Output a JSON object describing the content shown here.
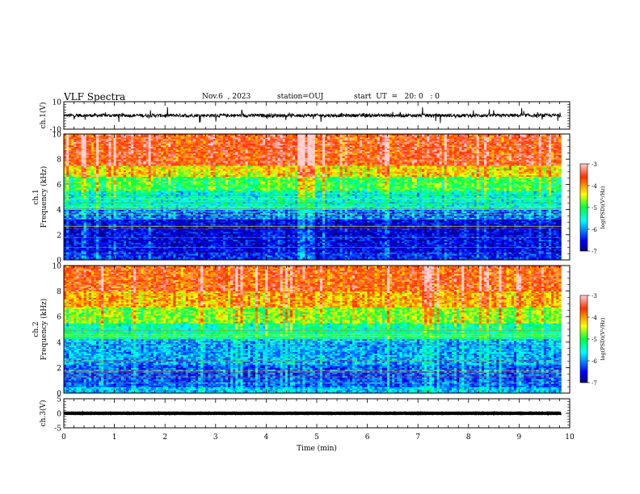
{
  "header": {
    "title": "VLF Spectra",
    "date": "Nov.6  , 2023",
    "station": "station=OUJ",
    "start_ut": "start  UT  =   20: 0   : 0"
  },
  "chart_data": [
    {
      "type": "line",
      "panel": "ch1-waveform",
      "ylabel": "ch.1(V)",
      "yticks": [
        "10",
        "-10"
      ],
      "ylim": [
        -10,
        10
      ],
      "xlim": [
        0,
        10
      ],
      "series": [
        {
          "color": "#000000",
          "baseline": 0,
          "noise_amplitude": 1.2,
          "spikes": true
        }
      ]
    },
    {
      "type": "heatmap",
      "panel": "ch1-spectrogram",
      "ylabel": "ch.1 Frequency  (kHz)",
      "yticks": [
        "0",
        "2",
        "4",
        "6",
        "8",
        "10"
      ],
      "ylim": [
        0,
        10
      ],
      "xlim": [
        0,
        9.83
      ],
      "colorbar": {
        "label": "log(PSD)(V²/Hz)",
        "ticks": [
          "-3",
          "-4",
          "-5",
          "-6",
          "-7"
        ],
        "range": [
          -7,
          -3
        ]
      },
      "bands": [
        {
          "f": [
            0,
            0.6
          ],
          "v": -6.4
        },
        {
          "f": [
            0.6,
            3.2
          ],
          "v": -6.6
        },
        {
          "f": [
            3.2,
            4.0
          ],
          "v": -6.1
        },
        {
          "f": [
            4.0,
            5.5
          ],
          "v": -5.5
        },
        {
          "f": [
            5.5,
            6.6
          ],
          "v": -5.0
        },
        {
          "f": [
            6.6,
            7.5
          ],
          "v": -4.3
        },
        {
          "f": [
            7.5,
            10
          ],
          "v": -3.6
        }
      ]
    },
    {
      "type": "heatmap",
      "panel": "ch2-spectrogram",
      "ylabel": "ch.2 Frequency  (kHz)",
      "yticks": [
        "0",
        "2",
        "4",
        "6",
        "8",
        "10"
      ],
      "ylim": [
        0,
        10
      ],
      "xlim": [
        0,
        9.83
      ],
      "colorbar": {
        "label": "log(PSD)(V²/Hz)",
        "ticks": [
          "-3",
          "-4",
          "-5",
          "-6",
          "-7"
        ],
        "range": [
          -7,
          -3
        ]
      },
      "bands": [
        {
          "f": [
            0,
            0.5
          ],
          "v": -5.8
        },
        {
          "f": [
            0.5,
            2.2
          ],
          "v": -6.2
        },
        {
          "f": [
            2.2,
            4.2
          ],
          "v": -5.9
        },
        {
          "f": [
            4.2,
            5.5
          ],
          "v": -5.3
        },
        {
          "f": [
            5.5,
            6.8
          ],
          "v": -4.7
        },
        {
          "f": [
            6.8,
            8.0
          ],
          "v": -4.1
        },
        {
          "f": [
            8.0,
            10
          ],
          "v": -3.7
        }
      ]
    },
    {
      "type": "line",
      "panel": "ch3-waveform",
      "ylabel": "ch.3(V)",
      "yticks": [
        "5",
        "0",
        "-5"
      ],
      "ylim": [
        -5,
        5
      ],
      "xlim": [
        0,
        10
      ],
      "series": [
        {
          "color": "#000000",
          "baseline": 0,
          "noise_amplitude": 0.05,
          "spikes": false
        }
      ]
    }
  ],
  "x_axis": {
    "label": "Time  (min)",
    "ticks": [
      "0",
      "1",
      "2",
      "3",
      "4",
      "5",
      "6",
      "7",
      "8",
      "9",
      "10"
    ],
    "range": [
      0,
      10
    ]
  }
}
